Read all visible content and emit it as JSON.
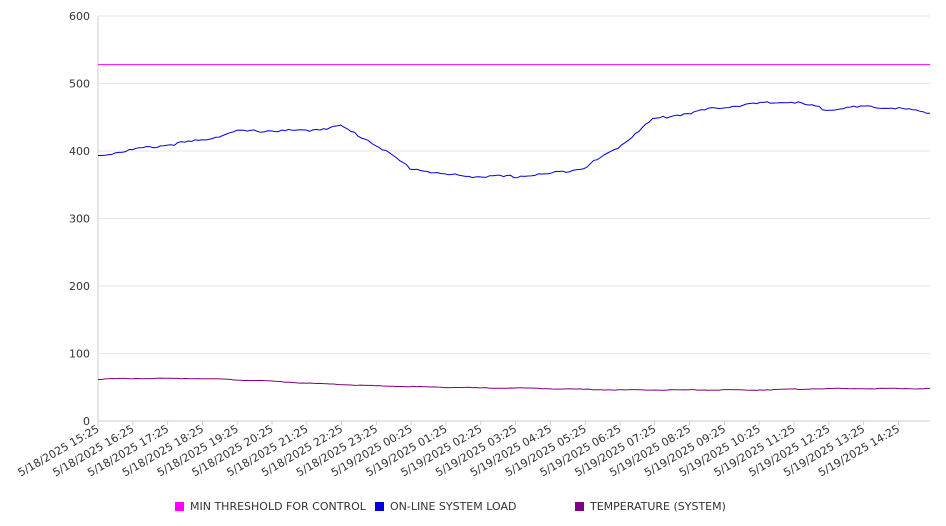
{
  "chart_data": {
    "type": "line",
    "title": "",
    "xlabel": "",
    "ylabel": "",
    "ylim": [
      0,
      600
    ],
    "yticks": [
      0,
      100,
      200,
      300,
      400,
      500,
      600
    ],
    "grid": true,
    "legend_position": "bottom",
    "x_tick_labels": [
      "5/18/2025 15:25",
      "5/18/2025 16:25",
      "5/18/2025 17:25",
      "5/18/2025 18:25",
      "5/18/2025 19:25",
      "5/18/2025 20:25",
      "5/18/2025 21:25",
      "5/18/2025 22:25",
      "5/18/2025 23:25",
      "5/19/2025 00:25",
      "5/19/2025 01:25",
      "5/19/2025 02:25",
      "5/19/2025 03:25",
      "5/19/2025 04:25",
      "5/19/2025 05:25",
      "5/19/2025 06:25",
      "5/19/2025 07:25",
      "5/19/2025 08:25",
      "5/19/2025 09:25",
      "5/19/2025 10:25",
      "5/19/2025 11:25",
      "5/19/2025 12:25",
      "5/19/2025 13:25",
      "5/19/2025 14:25"
    ],
    "x": [
      "5/18/2025 15:25",
      "5/18/2025 16:25",
      "5/18/2025 17:25",
      "5/18/2025 18:25",
      "5/18/2025 19:25",
      "5/18/2025 20:25",
      "5/18/2025 21:25",
      "5/18/2025 22:25",
      "5/18/2025 23:25",
      "5/19/2025 00:25",
      "5/19/2025 01:25",
      "5/19/2025 02:25",
      "5/19/2025 03:25",
      "5/19/2025 04:25",
      "5/19/2025 05:25",
      "5/19/2025 06:25",
      "5/19/2025 07:25",
      "5/19/2025 08:25",
      "5/19/2025 09:25",
      "5/19/2025 10:25",
      "5/19/2025 11:25",
      "5/19/2025 12:25",
      "5/19/2025 13:25",
      "5/19/2025 14:25",
      "5/19/2025 15:25"
    ],
    "series": [
      {
        "name": "MIN THRESHOLD FOR CONTROL",
        "color": "#ff00ff",
        "values": [
          528,
          528,
          528,
          528,
          528,
          528,
          528,
          528,
          528,
          528,
          528,
          528,
          528,
          528,
          528,
          528,
          528,
          528,
          528,
          528,
          528,
          528,
          528,
          528,
          528
        ]
      },
      {
        "name": "ON-LINE SYSTEM LOAD",
        "color": "#0000dd",
        "values": [
          393,
          402,
          409,
          416,
          429,
          430,
          430,
          437,
          410,
          375,
          365,
          362,
          362,
          366,
          375,
          405,
          447,
          456,
          465,
          470,
          473,
          462,
          465,
          464,
          456
        ]
      },
      {
        "name": "TEMPERATURE (SYSTEM)",
        "color": "#800080",
        "values": [
          62,
          63,
          63,
          63,
          61,
          59,
          56,
          54,
          52,
          51,
          50,
          49,
          49,
          48,
          47,
          46,
          46,
          46,
          46,
          46,
          47,
          48,
          48,
          48,
          48
        ]
      }
    ]
  }
}
